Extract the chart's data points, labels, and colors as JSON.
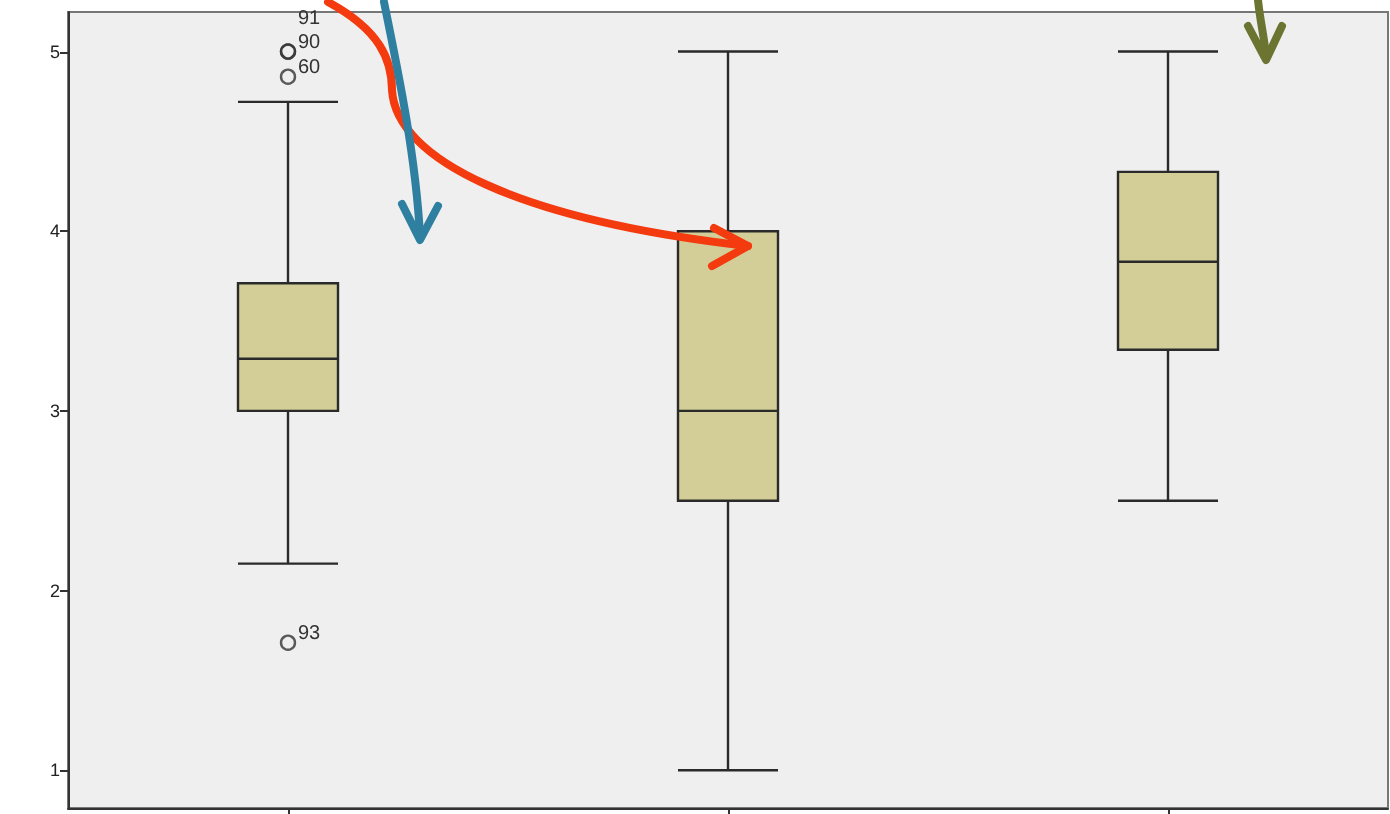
{
  "chart_data": {
    "type": "box",
    "categories": [
      null,
      null,
      null
    ],
    "boxes": [
      {
        "low": 2.15,
        "q1": 3.0,
        "median": 3.29,
        "q3": 3.71,
        "high": 4.72,
        "outliers": [
          5.0,
          5.0,
          4.86,
          1.71
        ]
      },
      {
        "low": 1.0,
        "q1": 2.5,
        "median": 3.0,
        "q3": 4.0,
        "high": 5.0
      },
      {
        "low": 2.5,
        "q1": 3.34,
        "median": 3.83,
        "q3": 4.33,
        "high": 5.0
      }
    ],
    "color": "#d3ce98",
    "ylim": [
      0.79,
      5.22
    ],
    "yticks": [
      1,
      2,
      3,
      4,
      5
    ],
    "tick_labels": "y",
    "grid": false,
    "annotations": [
      "91",
      "90",
      "60",
      "93"
    ]
  }
}
